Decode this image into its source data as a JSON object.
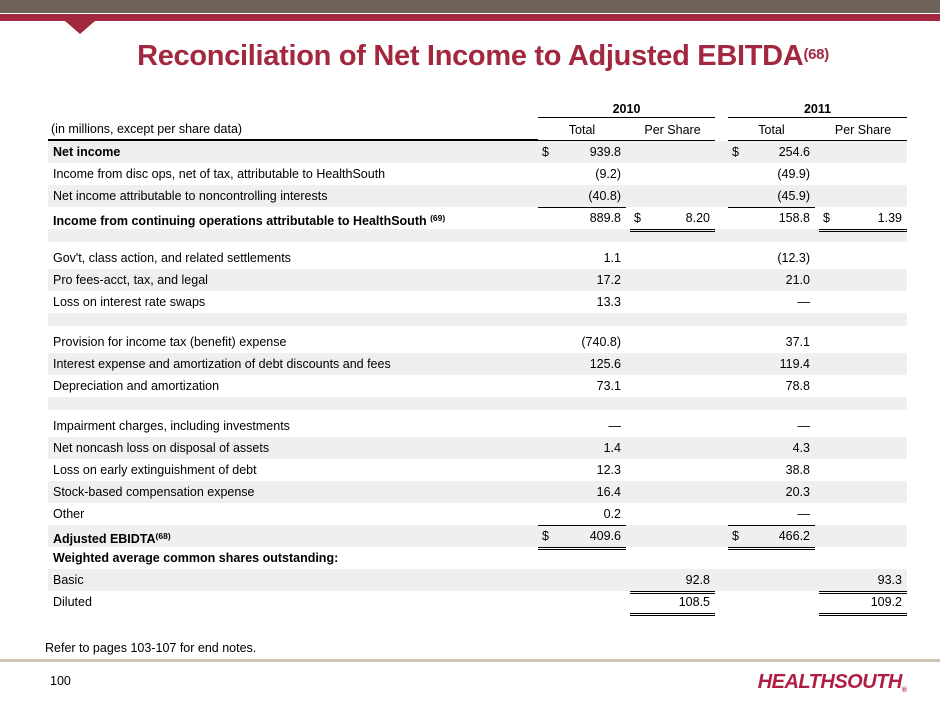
{
  "title": {
    "text": "Reconciliation of Net Income to Adjusted EBITDA",
    "sup": "(68)"
  },
  "colors": {
    "top_bar_brown": "#6F6259",
    "accent_crimson": "#A22840",
    "row_shade": "#EFEFEF",
    "footer_divider": "#CBC5B1",
    "logo_red": "#B01F41"
  },
  "table": {
    "caption": "(in millions, except per share data)",
    "year_headers": {
      "y2010": "2010",
      "y2011": "2011"
    },
    "sub_headers": {
      "total_2010": "Total",
      "per_share_2010": "Per Share",
      "total_2011": "Total",
      "per_share_2011": "Per Share"
    },
    "rows": [
      {
        "label": "Net income",
        "bold": true,
        "shaded": true,
        "d10": "$",
        "t10": "939.8",
        "d11": "$",
        "t11": "254.6"
      },
      {
        "label": "Income from disc ops, net of tax, attributable to HealthSouth",
        "t10": "(9.2)",
        "t11": "(49.9)"
      },
      {
        "label": "Net income attributable to noncontrolling interests",
        "shaded": true,
        "t10": "(40.8)",
        "t11": "(45.9)",
        "lines": {
          "t10": "single",
          "t11": "single"
        }
      },
      {
        "label": "Income from continuing operations attributable to HealthSouth ",
        "sup": "(69)",
        "bold": true,
        "t10": "889.8",
        "dps10": "$",
        "ps10": "8.20",
        "t11": "158.8",
        "dps11": "$",
        "ps11": "1.39",
        "lines": {
          "ps10": "double",
          "ps11": "double"
        }
      },
      {
        "spacer": true,
        "shaded": true
      },
      {
        "label": "Gov't, class action, and related settlements",
        "t10": "1.1",
        "t11": "(12.3)"
      },
      {
        "label": "Pro fees-acct, tax, and legal",
        "shaded": true,
        "t10": "17.2",
        "t11": "21.0"
      },
      {
        "label": "Loss on interest rate swaps",
        "t10": "13.3",
        "t11": "—"
      },
      {
        "spacer": true,
        "shaded": true
      },
      {
        "label": "Provision for income tax (benefit) expense",
        "t10": "(740.8)",
        "t11": "37.1"
      },
      {
        "label": "Interest expense and amortization of debt discounts and fees",
        "shaded": true,
        "t10": "125.6",
        "t11": "119.4"
      },
      {
        "label": "Depreciation and amortization",
        "t10": "73.1",
        "t11": "78.8"
      },
      {
        "spacer": true,
        "shaded": true
      },
      {
        "label": "Impairment charges, including investments",
        "t10": "—",
        "t11": "—"
      },
      {
        "label": "Net noncash loss on disposal of assets",
        "shaded": true,
        "t10": "1.4",
        "t11": "4.3"
      },
      {
        "label": "Loss on early extinguishment of debt",
        "t10": "12.3",
        "t11": "38.8"
      },
      {
        "label": "Stock-based compensation expense",
        "shaded": true,
        "t10": "16.4",
        "t11": "20.3"
      },
      {
        "label": "Other",
        "t10": "0.2",
        "t11": "—",
        "lines": {
          "t10": "single",
          "t11": "single"
        }
      },
      {
        "label": "Adjusted EBIDTA",
        "sup": "(68)",
        "bold": true,
        "shaded": true,
        "d10": "$",
        "t10": "409.6",
        "d11": "$",
        "t11": "466.2",
        "lines": {
          "t10": "double",
          "t11": "double"
        }
      },
      {
        "label": "Weighted average common shares outstanding:",
        "bold": true
      },
      {
        "label": "Basic",
        "shaded": true,
        "ps10": "92.8",
        "ps11": "93.3",
        "lines": {
          "ps10": "double",
          "ps11": "double"
        }
      },
      {
        "label": "Diluted",
        "ps10": "108.5",
        "ps11": "109.2",
        "lines": {
          "ps10": "double",
          "ps11": "double"
        }
      }
    ]
  },
  "footer": {
    "endnote": "Refer to pages 103-107 for end notes.",
    "page_number": "100",
    "logo_text": "HEALTHSOUTH",
    "logo_reg_mark": "®"
  }
}
